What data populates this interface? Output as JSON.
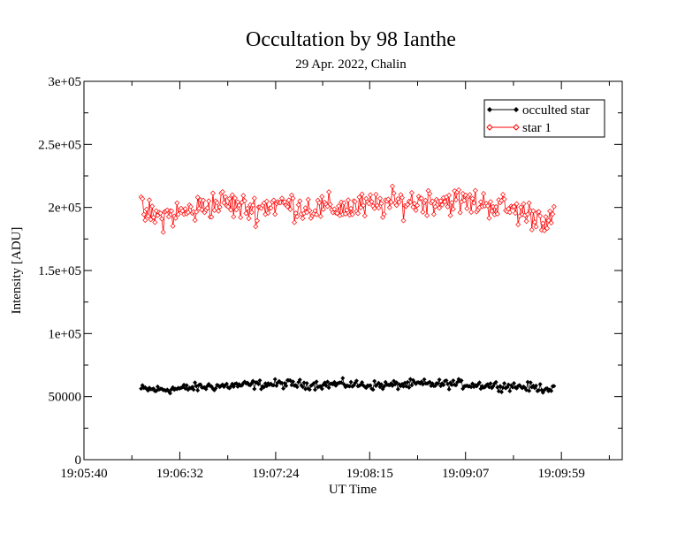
{
  "chart_data": {
    "type": "line",
    "title": "Occultation by 98 Ianthe",
    "subtitle": "29 Apr. 2022, Chalin",
    "xlabel": "UT Time",
    "ylabel": "Intensity [ADU]",
    "x_tick_labels": [
      "19:05:40",
      "19:06:32",
      "19:07:24",
      "19:08:15",
      "19:09:07",
      "19:09:59"
    ],
    "y_tick_labels": [
      "0",
      "50000",
      "1e+05",
      "1.5e+05",
      "2e+05",
      "2.5e+05",
      "3e+05"
    ],
    "xlim": [
      "19:05:40",
      "19:10:32"
    ],
    "ylim": [
      0,
      300000
    ],
    "legend_position": "top-right",
    "series": [
      {
        "name": "occulted star",
        "color": "#000000",
        "marker": "filled-diamond",
        "x_start": "19:06:11",
        "x_end": "19:09:55",
        "profile": [
          56000,
          55500,
          56000,
          57000,
          58000,
          58500,
          59000,
          59500,
          60000,
          60000,
          59500,
          59500,
          60000,
          59500,
          59000,
          59000,
          59500,
          60000,
          60000,
          60000,
          59500,
          59000,
          58500,
          58000,
          57000,
          56500
        ]
      },
      {
        "name": "star 1",
        "color": "#ff0000",
        "marker": "open-diamond",
        "x_start": "19:06:11",
        "x_end": "19:09:55",
        "profile": [
          197000,
          192000,
          195000,
          197000,
          202000,
          204000,
          200000,
          199000,
          203000,
          202000,
          200000,
          199000,
          200000,
          200000,
          201000,
          203000,
          204000,
          205000,
          206000,
          205000,
          204000,
          203000,
          200000,
          196000,
          193000,
          190000
        ]
      }
    ]
  }
}
